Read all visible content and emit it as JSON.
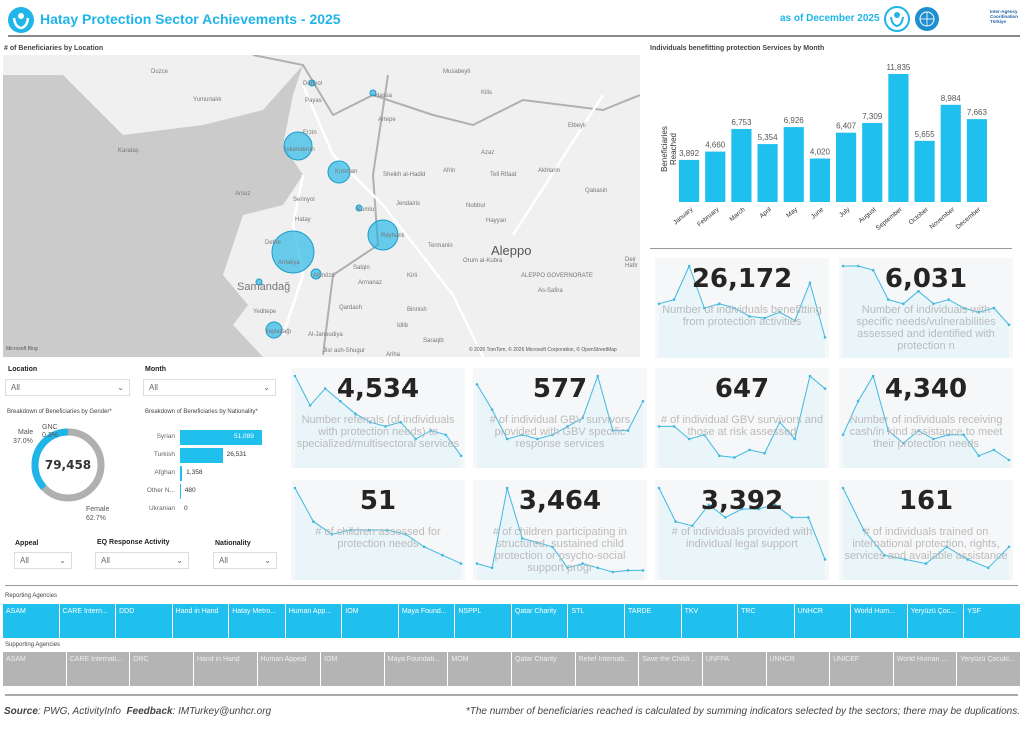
{
  "header": {
    "title": "Hatay Protection Sector Achievements - 2025",
    "as_of": "as of December 2025",
    "logo_text": "Inter-Agency Coordination Türkiye"
  },
  "map": {
    "title": "# of Beneficiaries by Location",
    "attribution": "© 2026 TomTom, © 2026 Microsoft Corporation, © OpenStreetMap",
    "brand": "Microsoft Bing",
    "places": [
      "Duzce",
      "Dörtyol",
      "Payas",
      "Yumurtalık",
      "Karataş",
      "Erzin",
      "İskenderun",
      "Kırıkhan",
      "Arsuz",
      "Serinyol",
      "Hatay",
      "Kumlu",
      "Reyhanlı",
      "Defne",
      "Antakya",
      "Altınözü",
      "Samandağ",
      "Yeditepe",
      "Yayladağı",
      "Hassa",
      "Artepe",
      "Musabeyli",
      "Kilis",
      "Elbeyli",
      "Azaz",
      "Afrin",
      "Tell Rifaat",
      "Akhtarin",
      "Qabasin",
      "Nubbul",
      "Hayyan",
      "Jendairis",
      "Sheikh al-Hadid",
      "Salqin",
      "Armanaz",
      "Kirli",
      "Termanin",
      "Orum al-Kubra",
      "Aleppo",
      "ALEPPO GOVERNORATE",
      "As-Safira",
      "Deir Hafir",
      "Qardash",
      "Binnish",
      "Idlib",
      "Saraqib",
      "Ariha",
      "Al-Janoudiya",
      "Jisr ash-Shugur"
    ]
  },
  "filters": {
    "location": {
      "label": "Location",
      "value": "All"
    },
    "month": {
      "label": "Month",
      "value": "All"
    },
    "appeal": {
      "label": "Appeal",
      "value": "All"
    },
    "eq": {
      "label": "EQ Response Activity",
      "value": "All"
    },
    "nationality": {
      "label": "Nationality",
      "value": "All"
    }
  },
  "gender": {
    "title": "Breakdown of Beneficiaries by Gender*",
    "total": "79,458",
    "male": {
      "label": "Male",
      "pct": "37.0%",
      "value": 37.0
    },
    "gnc": {
      "label": "GNC",
      "pct": "0.3%",
      "value": 0.3
    },
    "female": {
      "label": "Female",
      "pct": "62.7%",
      "value": 62.7
    },
    "colors": {
      "male": "#1fb5e8",
      "female": "#b0b0b0"
    }
  },
  "nationality": {
    "title": "Breakdown of Beneficiaries by Nationality*",
    "items": [
      {
        "label": "Syrian",
        "value": 51089,
        "text": "51,089"
      },
      {
        "label": "Turkish",
        "value": 26531,
        "text": "26,531"
      },
      {
        "label": "Afghan",
        "value": 1358,
        "text": "1,358"
      },
      {
        "label": "Other N...",
        "value": 480,
        "text": "480"
      },
      {
        "label": "Ukranian",
        "value": 0,
        "text": "0"
      }
    ]
  },
  "chart_data": {
    "type": "bar",
    "title": "Individuals benefitting protection Services by Month",
    "ylabel": "Beneficiaries Reached",
    "xlabel": "",
    "categories": [
      "January",
      "February",
      "March",
      "April",
      "May",
      "June",
      "July",
      "August",
      "September",
      "October",
      "November",
      "December"
    ],
    "values": [
      3892,
      4660,
      6753,
      5354,
      6926,
      4020,
      6407,
      7309,
      11835,
      5655,
      8984,
      7663
    ],
    "labels": [
      "3,892",
      "4,660",
      "6,753",
      "5,354",
      "6,926",
      "4,020",
      "6,407",
      "7,309",
      "11,835",
      "5,655",
      "8,984",
      "7,663"
    ],
    "ylim": [
      0,
      11835
    ],
    "color": "#1fbfee",
    "grid": false
  },
  "kpis": [
    {
      "value": "26,172",
      "desc": "Number of individuals benefitting from protection activities",
      "trend": [
        0.55,
        0.6,
        1,
        0.5,
        0.55,
        0.5,
        0.4,
        0.38,
        0.45,
        0.35,
        0.8,
        0.15
      ]
    },
    {
      "value": "6,031",
      "desc": "Number of individuals with specific needs/vulnerabilities assessed and identified with protection n",
      "trend": [
        1,
        1,
        0.95,
        0.6,
        0.55,
        0.7,
        0.55,
        0.6,
        0.5,
        0.45,
        0.5,
        0.3
      ]
    },
    {
      "value": "4,534",
      "desc": "Number referrals (of individuals with protection needs) to specialized/multisectoral services",
      "trend": [
        1,
        0.65,
        0.85,
        0.7,
        0.55,
        0.45,
        0.4,
        0.45,
        0.25,
        0.35,
        0.3,
        0.05
      ]
    },
    {
      "value": "577",
      "desc": "# of individual GBV survivors provided with GBV specific response services",
      "trend": [
        0.9,
        0.6,
        0.25,
        0.3,
        0.25,
        0.3,
        0.4,
        0.5,
        1,
        0.35,
        0.35,
        0.7
      ]
    },
    {
      "value": "647",
      "desc": "# of individual GBV survivors and those at risk assessed",
      "trend": [
        0.4,
        0.4,
        0.25,
        0.3,
        0.05,
        0.03,
        0.12,
        0.08,
        0.45,
        0.25,
        1,
        0.85
      ]
    },
    {
      "value": "4,340",
      "desc": "Number of individuals receiving cash/in kind assistance to meet their protection needs",
      "trend": [
        0.3,
        0.7,
        1,
        0.35,
        0.2,
        0.35,
        0.25,
        0.3,
        0.3,
        0.05,
        0.12,
        0
      ]
    },
    {
      "value": "51",
      "desc": "# of children assessed for protection needs",
      "trend": [
        1,
        0.6,
        0.45,
        0.5,
        0.5,
        0.5,
        0.45,
        0.3,
        0.2,
        0.1
      ]
    },
    {
      "value": "3,464",
      "desc": "# of children participating in structured, sustained child protection or psycho-social support progr",
      "trend": [
        0.1,
        0.05,
        1,
        0.4,
        0.35,
        0.3,
        0.05,
        0.1,
        0.05,
        0,
        0.02,
        0.02
      ]
    },
    {
      "value": "3,392",
      "desc": "# of individuals provided with individual legal support",
      "trend": [
        1,
        0.6,
        0.55,
        0.8,
        0.65,
        0.75,
        0.75,
        0.8,
        0.65,
        0.65,
        0.15
      ]
    },
    {
      "value": "161",
      "desc": "# of individuals trained on international protection, rights, services and available assistance",
      "trend": [
        1,
        0.5,
        0.2,
        0.15,
        0.1,
        0.3,
        0.15,
        0.05,
        0.3
      ]
    }
  ],
  "reporting": {
    "title": "Reporting Agencies",
    "items": [
      "ASAM",
      "CARE Intern...",
      "DDD",
      "Hand in Hand",
      "Hatay Metro...",
      "Human App...",
      "IOM",
      "Maya Found...",
      "NSPPL",
      "Qatar Charity",
      "STL",
      "TARDE",
      "TKV",
      "TRC",
      "UNHCR",
      "World Hum...",
      "Yeryüzü Çoc...",
      "YSF"
    ]
  },
  "supporting": {
    "title": "Supporting Agencies",
    "items": [
      "ASAM",
      "CARE Internati...",
      "DRC",
      "Hand in Hand",
      "Human Appeal",
      "IOM",
      "Maya Foundati...",
      "MOM",
      "Qatar Charity",
      "Relief Internati...",
      "Save the Childr...",
      "UNFPA",
      "UNHCR",
      "UNICEF",
      "World Human ...",
      "Yeryüzü Çocukl..."
    ]
  },
  "footer": {
    "source_label": "Source",
    "source": ": PWG, ActivityInfo",
    "feedback_label": "Feedback",
    "feedback": ": IMTurkey@unhcr.org",
    "note": "*The number of beneficiaries reached is calculated by summing indicators selected by the sectors; there may be duplications."
  }
}
